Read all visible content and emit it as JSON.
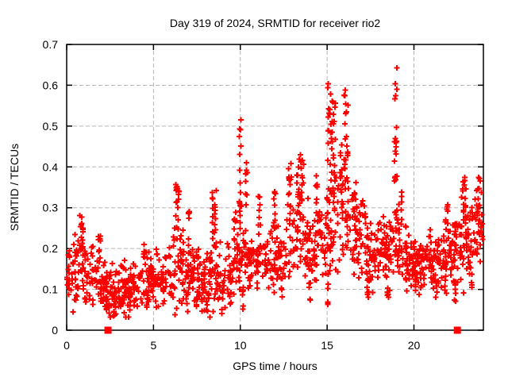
{
  "page": {
    "background": "#ffffff"
  },
  "chart_data": {
    "type": "scatter",
    "title": "Day 319 of 2024, SRMTID for receiver rio2",
    "xlabel": "GPS time / hours",
    "ylabel": "SRMTID / TECUs",
    "xlim": [
      0,
      24
    ],
    "ylim": [
      0,
      0.7
    ],
    "grid": true,
    "legend": "none",
    "x_ticks": {
      "values": [
        0,
        5,
        10,
        15,
        20
      ],
      "labels": [
        "0",
        "5",
        "10",
        "15",
        "20"
      ]
    },
    "y_ticks": {
      "values": [
        0,
        0.1,
        0.2,
        0.3,
        0.4,
        0.5,
        0.6,
        0.7
      ],
      "labels": [
        "0",
        "0.1",
        "0.2",
        "0.3",
        "0.4",
        "0.5",
        "0.6",
        "0.7"
      ]
    },
    "colors": {
      "marker": "#ff0000",
      "grid": "#b4b4b4",
      "border": "#000000",
      "background": "#ffffff"
    },
    "series": [
      {
        "name": "srmtid-values",
        "marker": "plus",
        "color": "#ff0000",
        "band_envelope": {
          "seed": 1319,
          "epoch_step": 0.018,
          "fill_prob": 0.55,
          "max_per_epoch": 3,
          "hours": [
            0,
            0.5,
            1,
            1.5,
            2,
            2.5,
            3,
            3.5,
            4,
            4.5,
            5,
            5.5,
            6,
            6.4,
            7,
            7.5,
            8,
            8.5,
            9,
            9.5,
            10,
            10.5,
            11,
            11.5,
            12,
            12.5,
            13,
            13.5,
            14,
            14.5,
            15,
            15.5,
            16,
            16.5,
            17,
            17.5,
            18,
            18.5,
            19,
            19.5,
            20,
            20.5,
            21,
            21.5,
            22,
            22.5,
            23,
            23.5,
            24
          ],
          "mid": [
            0.13,
            0.15,
            0.15,
            0.13,
            0.11,
            0.1,
            0.1,
            0.1,
            0.11,
            0.12,
            0.13,
            0.12,
            0.14,
            0.16,
            0.14,
            0.12,
            0.12,
            0.16,
            0.13,
            0.14,
            0.18,
            0.17,
            0.17,
            0.18,
            0.19,
            0.21,
            0.23,
            0.25,
            0.21,
            0.22,
            0.24,
            0.27,
            0.26,
            0.23,
            0.21,
            0.19,
            0.2,
            0.21,
            0.22,
            0.18,
            0.16,
            0.17,
            0.18,
            0.17,
            0.18,
            0.2,
            0.22,
            0.24,
            0.25
          ],
          "half": [
            0.05,
            0.06,
            0.07,
            0.06,
            0.05,
            0.05,
            0.05,
            0.05,
            0.04,
            0.05,
            0.05,
            0.05,
            0.06,
            0.08,
            0.06,
            0.06,
            0.05,
            0.08,
            0.06,
            0.06,
            0.07,
            0.06,
            0.05,
            0.06,
            0.06,
            0.07,
            0.07,
            0.09,
            0.07,
            0.07,
            0.08,
            0.11,
            0.1,
            0.08,
            0.08,
            0.07,
            0.07,
            0.07,
            0.08,
            0.06,
            0.05,
            0.05,
            0.05,
            0.06,
            0.06,
            0.07,
            0.07,
            0.07,
            0.07
          ]
        },
        "clusters": [
          {
            "t": 0.85,
            "w": 0.2,
            "y0": 0.2,
            "y1": 0.285,
            "n": 16
          },
          {
            "t": 1.9,
            "w": 0.15,
            "y0": 0.18,
            "y1": 0.235,
            "n": 8
          },
          {
            "t": 4.5,
            "w": 0.2,
            "y0": 0.16,
            "y1": 0.21,
            "n": 8
          },
          {
            "t": 6.35,
            "w": 0.25,
            "y0": 0.24,
            "y1": 0.36,
            "n": 18
          },
          {
            "t": 7.05,
            "w": 0.1,
            "y0": 0.22,
            "y1": 0.3,
            "n": 6
          },
          {
            "t": 8.5,
            "w": 0.3,
            "y0": 0.2,
            "y1": 0.35,
            "n": 18
          },
          {
            "t": 9.7,
            "w": 0.15,
            "y0": 0.22,
            "y1": 0.31,
            "n": 8
          },
          {
            "t": 10.0,
            "w": 0.12,
            "y0": 0.24,
            "y1": 0.53,
            "n": 18
          },
          {
            "t": 10.35,
            "w": 0.1,
            "y0": 0.3,
            "y1": 0.42,
            "n": 8
          },
          {
            "t": 11.1,
            "w": 0.15,
            "y0": 0.25,
            "y1": 0.33,
            "n": 8
          },
          {
            "t": 12.0,
            "w": 0.15,
            "y0": 0.26,
            "y1": 0.35,
            "n": 8
          },
          {
            "t": 12.85,
            "w": 0.18,
            "y0": 0.28,
            "y1": 0.41,
            "n": 12
          },
          {
            "t": 13.45,
            "w": 0.4,
            "y0": 0.26,
            "y1": 0.43,
            "n": 26
          },
          {
            "t": 14.4,
            "w": 0.15,
            "y0": 0.26,
            "y1": 0.38,
            "n": 8
          },
          {
            "t": 15.25,
            "w": 0.45,
            "y0": 0.33,
            "y1": 0.61,
            "n": 40
          },
          {
            "t": 15.8,
            "w": 0.15,
            "y0": 0.28,
            "y1": 0.47,
            "n": 10
          },
          {
            "t": 16.1,
            "w": 0.25,
            "y0": 0.32,
            "y1": 0.6,
            "n": 24
          },
          {
            "t": 16.6,
            "w": 0.2,
            "y0": 0.26,
            "y1": 0.37,
            "n": 10
          },
          {
            "t": 18.95,
            "w": 0.15,
            "y0": 0.26,
            "y1": 0.645,
            "n": 22
          },
          {
            "t": 19.3,
            "w": 0.1,
            "y0": 0.25,
            "y1": 0.34,
            "n": 6
          },
          {
            "t": 21.9,
            "w": 0.2,
            "y0": 0.24,
            "y1": 0.31,
            "n": 8
          },
          {
            "t": 22.9,
            "w": 0.35,
            "y0": 0.26,
            "y1": 0.385,
            "n": 16
          },
          {
            "t": 23.7,
            "w": 0.25,
            "y0": 0.26,
            "y1": 0.375,
            "n": 10
          },
          {
            "t": 2.3,
            "w": 0.1,
            "y0": 0.045,
            "y1": 0.1,
            "n": 6
          },
          {
            "t": 2.75,
            "w": 0.1,
            "y0": 0.03,
            "y1": 0.09,
            "n": 7
          },
          {
            "t": 3.6,
            "w": 0.1,
            "y0": 0.04,
            "y1": 0.1,
            "n": 6
          },
          {
            "t": 5.6,
            "w": 0.1,
            "y0": 0.06,
            "y1": 0.11,
            "n": 5
          },
          {
            "t": 7.5,
            "w": 0.08,
            "y0": 0.05,
            "y1": 0.1,
            "n": 5
          },
          {
            "t": 8.15,
            "w": 0.1,
            "y0": 0.03,
            "y1": 0.09,
            "n": 6
          },
          {
            "t": 8.95,
            "w": 0.1,
            "y0": 0.04,
            "y1": 0.1,
            "n": 6
          },
          {
            "t": 10.15,
            "w": 0.08,
            "y0": 0.05,
            "y1": 0.11,
            "n": 5
          },
          {
            "t": 12.4,
            "w": 0.08,
            "y0": 0.08,
            "y1": 0.13,
            "n": 5
          },
          {
            "t": 14.0,
            "w": 0.08,
            "y0": 0.07,
            "y1": 0.12,
            "n": 5
          },
          {
            "t": 15.05,
            "w": 0.06,
            "y0": 0.06,
            "y1": 0.12,
            "n": 5
          },
          {
            "t": 17.35,
            "w": 0.1,
            "y0": 0.07,
            "y1": 0.13,
            "n": 6
          },
          {
            "t": 18.5,
            "w": 0.1,
            "y0": 0.06,
            "y1": 0.12,
            "n": 6
          },
          {
            "t": 20.05,
            "w": 0.1,
            "y0": 0.08,
            "y1": 0.13,
            "n": 5
          },
          {
            "t": 21.3,
            "w": 0.1,
            "y0": 0.07,
            "y1": 0.12,
            "n": 5
          },
          {
            "t": 22.35,
            "w": 0.1,
            "y0": 0.07,
            "y1": 0.12,
            "n": 6
          },
          {
            "t": 23.3,
            "w": 0.08,
            "y0": 0.1,
            "y1": 0.14,
            "n": 4
          }
        ]
      },
      {
        "name": "flagged-epochs",
        "marker": "filled-square",
        "color": "#ff0000",
        "points": [
          [
            2.38,
            0
          ],
          [
            22.5,
            0
          ]
        ]
      }
    ]
  }
}
